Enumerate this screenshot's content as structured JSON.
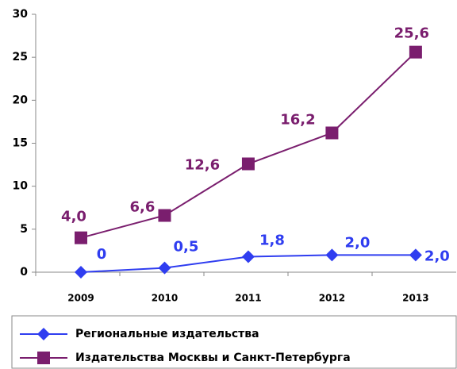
{
  "chart_data": {
    "type": "line",
    "categories": [
      "2009",
      "2010",
      "2011",
      "2012",
      "2013"
    ],
    "series": [
      {
        "name": "Региональные издательства",
        "color": "#2f3df0",
        "marker": "diamond",
        "values": [
          0,
          0.5,
          1.8,
          2.0,
          2.0
        ],
        "value_labels": [
          "0",
          "0,5",
          "1,8",
          "2,0",
          "2,0"
        ]
      },
      {
        "name": "Издательства Москвы и Санкт-Петербурга",
        "color": "#7a1e6e",
        "marker": "square",
        "values": [
          4.0,
          6.6,
          12.6,
          16.2,
          25.6
        ],
        "value_labels": [
          "4,0",
          "6,6",
          "12,6",
          "16,2",
          "25,6"
        ]
      }
    ],
    "ylim": [
      0,
      30
    ],
    "yticks": [
      0,
      5,
      10,
      15,
      20,
      25,
      30
    ],
    "legend": "bottom"
  }
}
